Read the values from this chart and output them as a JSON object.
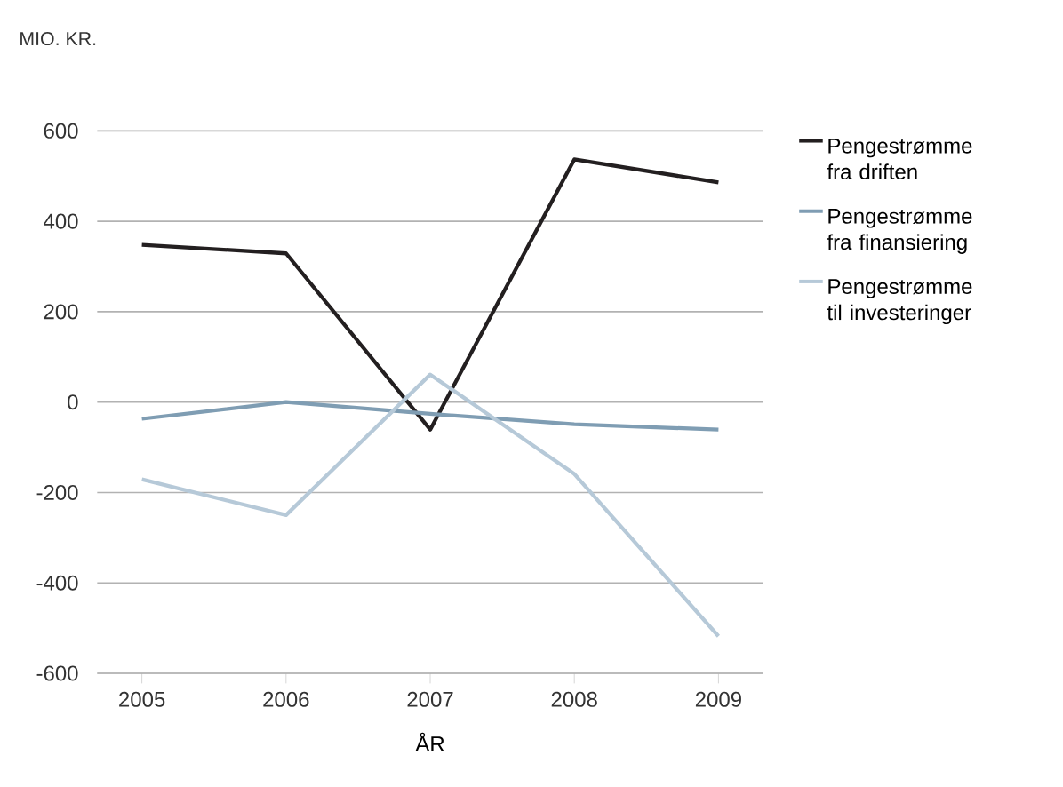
{
  "chart_data": {
    "type": "line",
    "ylabel": "MIO. KR.",
    "xlabel": "ÅR",
    "categories": [
      "2005",
      "2006",
      "2007",
      "2008",
      "2009"
    ],
    "series": [
      {
        "name": "Pengestrømme fra driften",
        "color": "#231f20",
        "values": [
          348,
          329,
          -61,
          537,
          486
        ]
      },
      {
        "name": "Pengestrømme fra finansiering",
        "color": "#7f9db3",
        "values": [
          -37,
          0,
          -26,
          -49,
          -61
        ]
      },
      {
        "name": "Pengestrømme til investeringer",
        "color": "#b6c9d8",
        "values": [
          -171,
          -250,
          61,
          -159,
          -518
        ]
      }
    ],
    "ylim": [
      -600,
      600
    ],
    "yticks": [
      -600,
      -400,
      -200,
      0,
      200,
      400,
      600
    ],
    "grid": "y",
    "legend": "right",
    "marker": "none",
    "line_style": "solid"
  }
}
